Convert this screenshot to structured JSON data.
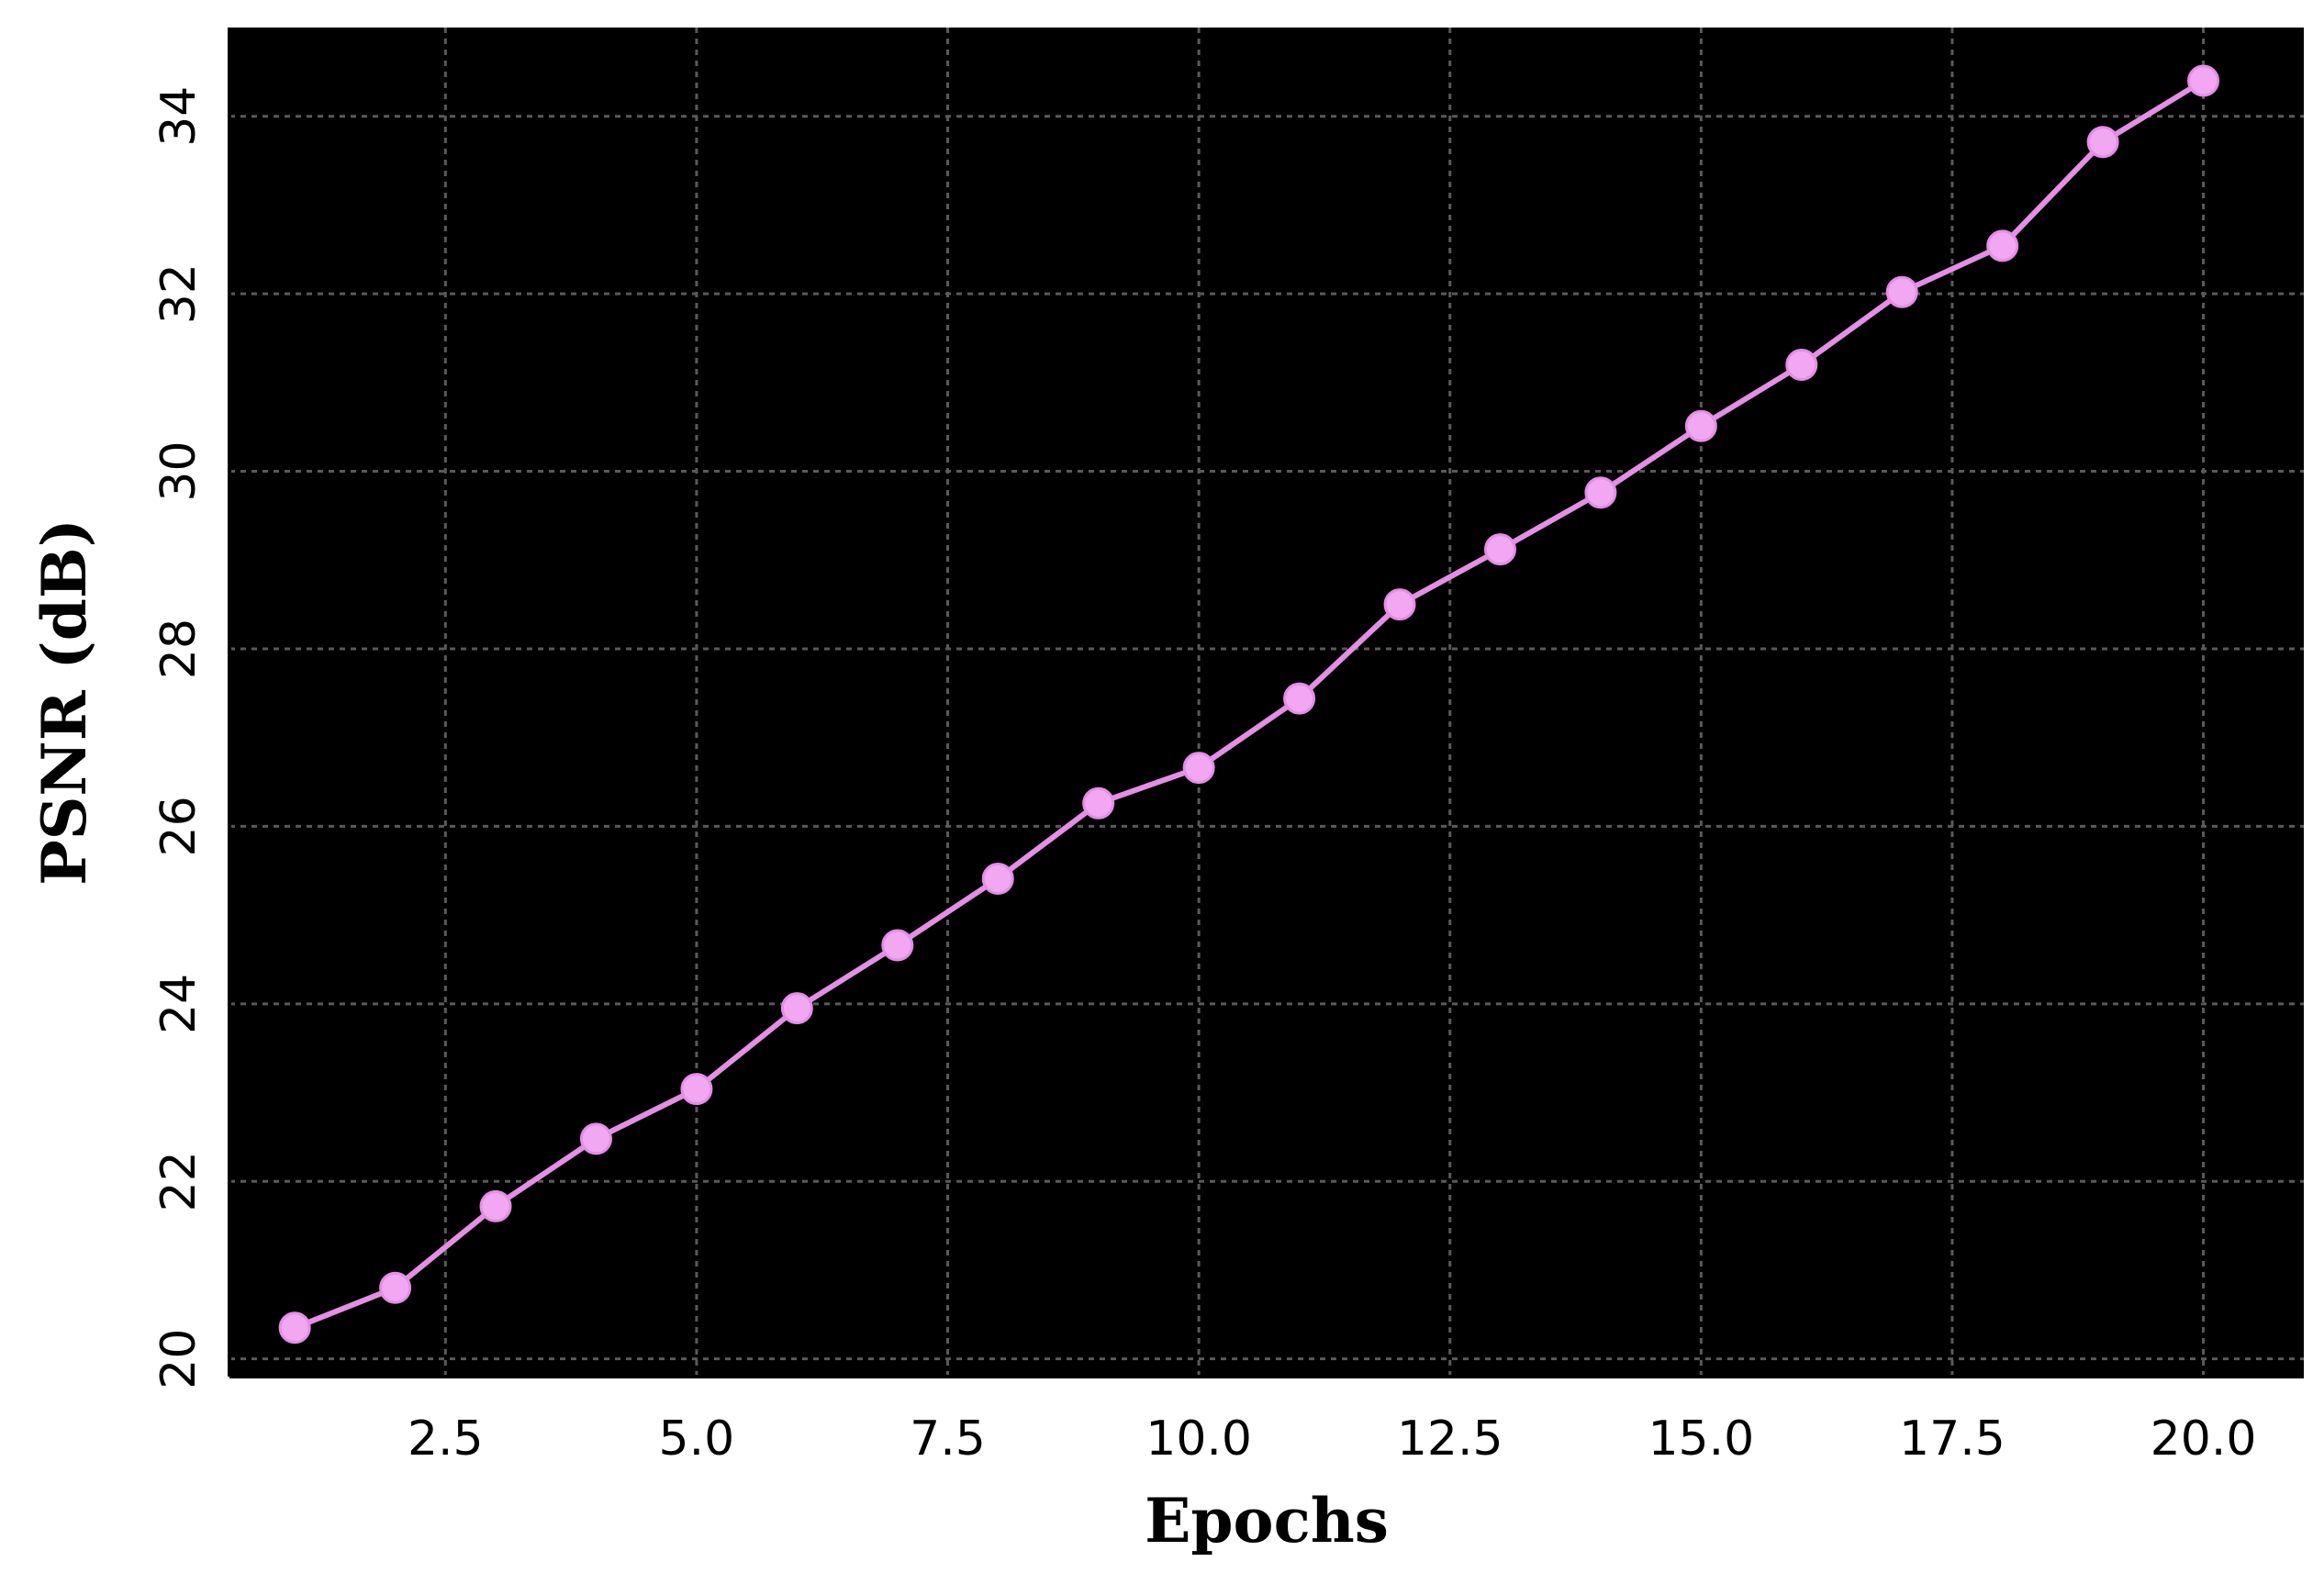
{
  "chart_data": {
    "type": "line",
    "title": "",
    "xlabel": "Epochs",
    "ylabel": "PSNR (dB)",
    "xlim": [
      0.35,
      21.0
    ],
    "ylim": [
      19.8,
      35.0
    ],
    "xticks": [
      2.5,
      5.0,
      7.5,
      10.0,
      12.5,
      15.0,
      17.5,
      20.0
    ],
    "xtick_labels": [
      "2.5",
      "5.0",
      "7.5",
      "10.0",
      "12.5",
      "15.0",
      "17.5",
      "20.0"
    ],
    "yticks": [
      20,
      22,
      24,
      26,
      28,
      30,
      32,
      34
    ],
    "ytick_labels": [
      "20",
      "22",
      "24",
      "26",
      "28",
      "30",
      "32",
      "34"
    ],
    "grid": true,
    "legend": "none",
    "colors": {
      "background": "#000000",
      "line": "#e48ee6",
      "marker": "#f2a7f2",
      "grid": "#5a5a5a"
    },
    "series": [
      {
        "x": [
          1,
          2,
          3,
          4,
          5,
          6,
          7,
          8,
          9,
          10,
          11,
          12,
          13,
          14,
          15,
          16,
          17,
          18,
          19,
          20
        ],
        "values": [
          20.35,
          20.8,
          21.72,
          22.48,
          23.04,
          23.95,
          24.66,
          25.41,
          26.26,
          26.66,
          27.44,
          28.5,
          29.12,
          29.76,
          30.51,
          31.2,
          32.02,
          32.54,
          33.71,
          34.4
        ]
      }
    ]
  }
}
